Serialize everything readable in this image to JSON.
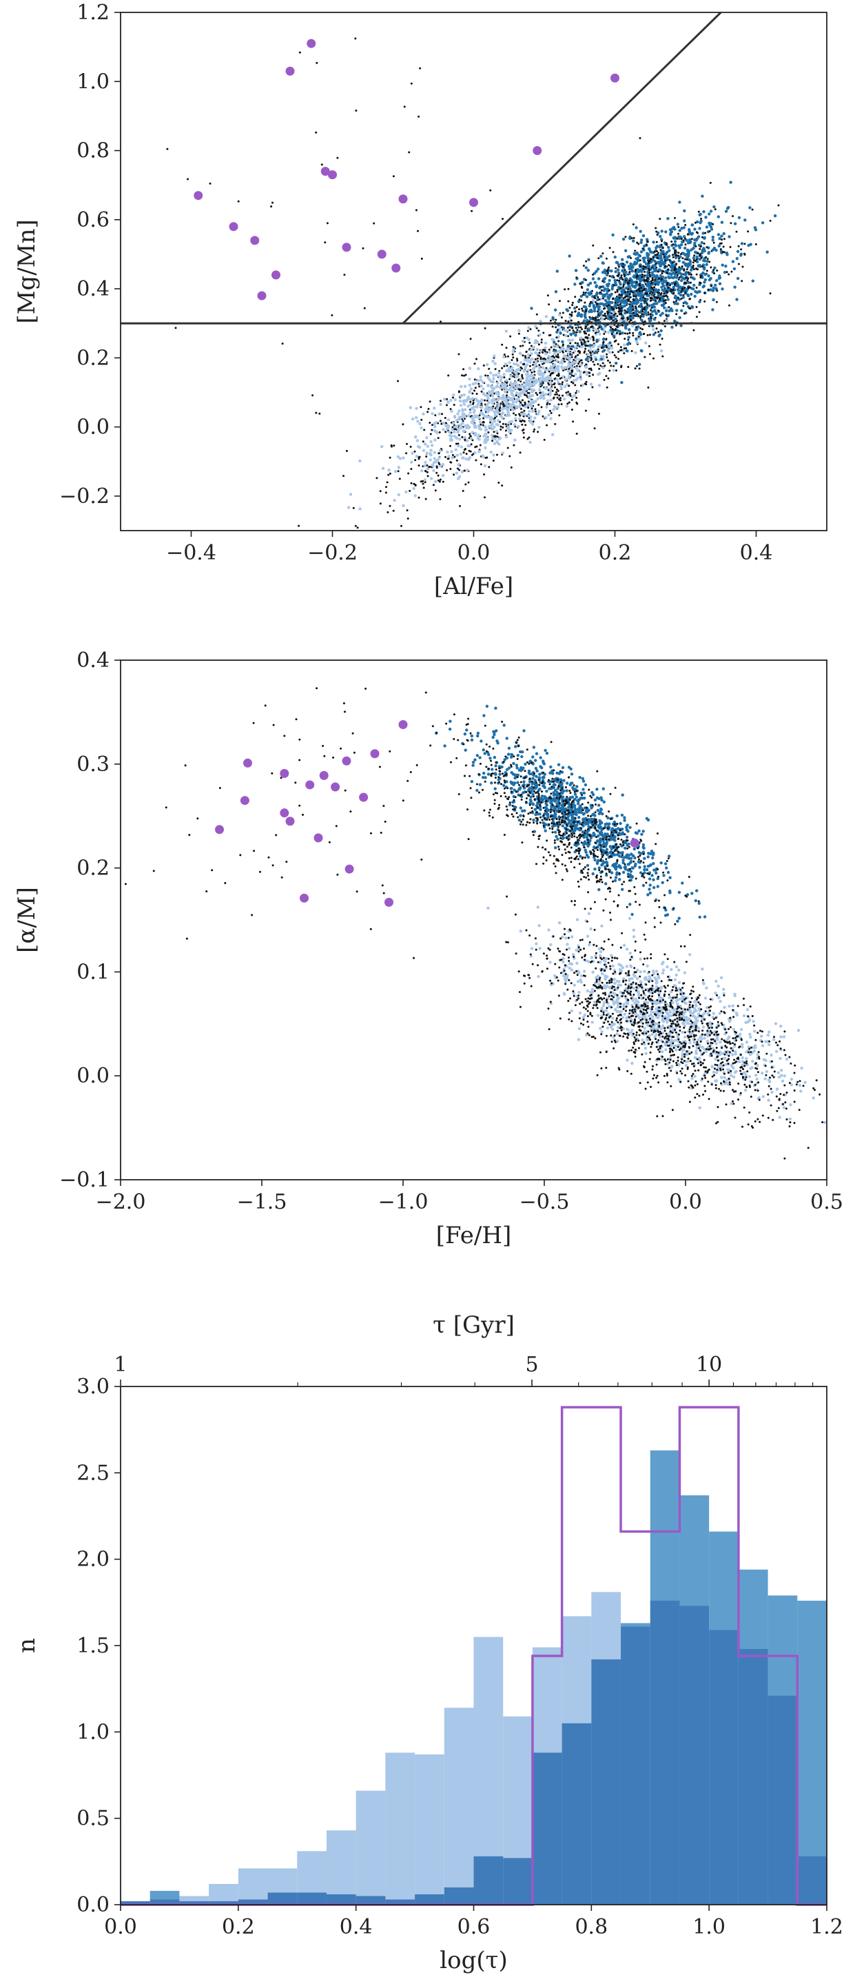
{
  "chart_data": [
    {
      "type": "scatter",
      "xlabel": "[Al/Fe]",
      "ylabel": "[Mg/Mn]",
      "xlim": [
        -0.5,
        0.5
      ],
      "ylim": [
        -0.3,
        1.2
      ],
      "xticks": [
        -0.4,
        -0.2,
        0.0,
        0.2,
        0.4
      ],
      "xtick_labels": [
        "−0.4",
        "−0.2",
        "0.0",
        "0.2",
        "0.4"
      ],
      "yticks": [
        -0.2,
        0.0,
        0.2,
        0.4,
        0.6,
        0.8,
        1.0,
        1.2
      ],
      "ytick_labels": [
        "−0.2",
        "0.0",
        "0.2",
        "0.4",
        "0.6",
        "0.8",
        "1.0",
        "1.2"
      ],
      "lines": [
        {
          "kind": "horizontal",
          "y": 0.3,
          "x": [
            -0.5,
            0.5
          ]
        },
        {
          "kind": "diagonal",
          "points": [
            [
              -0.1,
              0.3
            ],
            [
              0.35,
              1.2
            ]
          ]
        }
      ],
      "colors": {
        "black": "#111111",
        "dark_blue": "#1f6fa8",
        "light_blue": "#a9c7e8",
        "purple": "#9b59c6",
        "line": "#333333"
      },
      "highlight_points": {
        "x": [
          -0.39,
          -0.34,
          -0.31,
          -0.3,
          -0.28,
          -0.26,
          -0.23,
          -0.21,
          -0.2,
          -0.18,
          -0.13,
          -0.11,
          -0.1,
          0.0,
          0.09,
          0.2
        ],
        "y": [
          0.67,
          0.58,
          0.54,
          0.38,
          0.44,
          1.03,
          1.11,
          0.74,
          0.73,
          0.52,
          0.5,
          0.46,
          0.66,
          0.65,
          0.8,
          1.01
        ]
      },
      "clouds": [
        {
          "color": "black",
          "n": 1300,
          "center": [
            0.1,
            0.15
          ],
          "sd": [
            0.1,
            0.16
          ],
          "rho": 0.88
        },
        {
          "color": "light_blue",
          "n": 900,
          "center": [
            0.06,
            0.1
          ],
          "sd": [
            0.08,
            0.11
          ],
          "rho": 0.85
        },
        {
          "color": "dark_blue",
          "n": 1100,
          "center": [
            0.25,
            0.42
          ],
          "sd": [
            0.055,
            0.085
          ],
          "rho": 0.6
        },
        {
          "color": "black",
          "n": 500,
          "center": [
            0.24,
            0.4
          ],
          "sd": [
            0.06,
            0.09
          ],
          "rho": 0.6
        },
        {
          "color": "black",
          "n": 45,
          "center": [
            -0.2,
            0.6
          ],
          "sd": [
            0.14,
            0.28
          ],
          "rho": 0.0
        }
      ]
    },
    {
      "type": "scatter",
      "xlabel": "[Fe/H]",
      "ylabel": "[α/M]",
      "xlim": [
        -2.0,
        0.5
      ],
      "ylim": [
        -0.1,
        0.4
      ],
      "xticks": [
        -2.0,
        -1.5,
        -1.0,
        -0.5,
        0.0,
        0.5
      ],
      "xtick_labels": [
        "−2.0",
        "−1.5",
        "−1.0",
        "−0.5",
        "0.0",
        "0.5"
      ],
      "yticks": [
        -0.1,
        0.0,
        0.1,
        0.2,
        0.3,
        0.4
      ],
      "ytick_labels": [
        "−0.1",
        "0.0",
        "0.1",
        "0.2",
        "0.3",
        "0.4"
      ],
      "colors": {
        "black": "#111111",
        "dark_blue": "#1f6fa8",
        "light_blue": "#a9c7e8",
        "purple": "#9b59c6"
      },
      "highlight_points": {
        "x": [
          -1.65,
          -1.56,
          -1.55,
          -1.42,
          -1.42,
          -1.4,
          -1.35,
          -1.33,
          -1.3,
          -1.28,
          -1.24,
          -1.2,
          -1.19,
          -1.14,
          -1.1,
          -1.05,
          -1.0,
          -0.18
        ],
        "y": [
          0.237,
          0.265,
          0.301,
          0.253,
          0.291,
          0.245,
          0.171,
          0.28,
          0.229,
          0.289,
          0.278,
          0.303,
          0.199,
          0.268,
          0.31,
          0.167,
          0.338,
          0.224
        ]
      },
      "clouds": [
        {
          "color": "dark_blue",
          "n": 1000,
          "center": [
            -0.4,
            0.25
          ],
          "sd": [
            0.16,
            0.035
          ],
          "rho": -0.85
        },
        {
          "color": "black",
          "n": 600,
          "center": [
            -0.42,
            0.24
          ],
          "sd": [
            0.17,
            0.04
          ],
          "rho": -0.8
        },
        {
          "color": "light_blue",
          "n": 1000,
          "center": [
            -0.05,
            0.055
          ],
          "sd": [
            0.2,
            0.035
          ],
          "rho": -0.75
        },
        {
          "color": "black",
          "n": 1100,
          "center": [
            -0.08,
            0.05
          ],
          "sd": [
            0.21,
            0.04
          ],
          "rho": -0.7
        },
        {
          "color": "black",
          "n": 70,
          "center": [
            -1.3,
            0.25
          ],
          "sd": [
            0.28,
            0.07
          ],
          "rho": 0.0
        }
      ]
    },
    {
      "type": "bar",
      "subtype": "histogram",
      "xlabel": "log(τ)",
      "ylabel": "n",
      "top_axis_label": "τ [Gyr]",
      "xlim": [
        0.0,
        1.2
      ],
      "ylim": [
        0.0,
        3.0
      ],
      "xticks": [
        0.0,
        0.2,
        0.4,
        0.6,
        0.8,
        1.0,
        1.2
      ],
      "xtick_labels": [
        "0.0",
        "0.2",
        "0.4",
        "0.6",
        "0.8",
        "1.0",
        "1.2"
      ],
      "yticks": [
        0.0,
        0.5,
        1.0,
        1.5,
        2.0,
        2.5,
        3.0
      ],
      "ytick_labels": [
        "0.0",
        "0.5",
        "1.0",
        "1.5",
        "2.0",
        "2.5",
        "3.0"
      ],
      "top_ticks": [
        1,
        5,
        10
      ],
      "top_tick_labels": [
        "1",
        "5",
        "10"
      ],
      "top_minor_ticks": [
        2,
        3,
        4,
        6,
        7,
        8,
        9,
        11,
        12,
        13,
        14,
        15
      ],
      "bin_edges": [
        0.0,
        0.05,
        0.1,
        0.15,
        0.2,
        0.25,
        0.3,
        0.35,
        0.4,
        0.45,
        0.5,
        0.55,
        0.6,
        0.65,
        0.7,
        0.75,
        0.8,
        0.85,
        0.9,
        0.95,
        1.0,
        1.05,
        1.1,
        1.15,
        1.2
      ],
      "series": [
        {
          "name": "",
          "color": "#a9c7e8",
          "values": [
            0.02,
            0.03,
            0.05,
            0.12,
            0.21,
            0.21,
            0.31,
            0.43,
            0.66,
            0.88,
            0.87,
            1.14,
            1.55,
            1.09,
            1.49,
            1.67,
            1.81,
            1.61,
            1.76,
            1.73,
            1.59,
            1.48,
            1.21,
            0.28
          ]
        },
        {
          "name": "",
          "color": "#4f95c8",
          "values": [
            0.02,
            0.08,
            0.02,
            0.02,
            0.03,
            0.07,
            0.07,
            0.06,
            0.05,
            0.03,
            0.06,
            0.1,
            0.28,
            0.27,
            0.88,
            1.05,
            1.42,
            1.63,
            2.63,
            2.37,
            2.16,
            1.94,
            1.79,
            1.76
          ]
        },
        {
          "name": "",
          "style": "step",
          "color": "#9b59c6",
          "values": [
            0,
            0,
            0,
            0,
            0,
            0,
            0,
            0,
            0,
            0,
            0,
            0,
            0,
            0,
            1.44,
            2.88,
            2.88,
            2.16,
            2.16,
            2.88,
            2.88,
            1.44,
            1.44,
            0
          ]
        }
      ]
    }
  ]
}
